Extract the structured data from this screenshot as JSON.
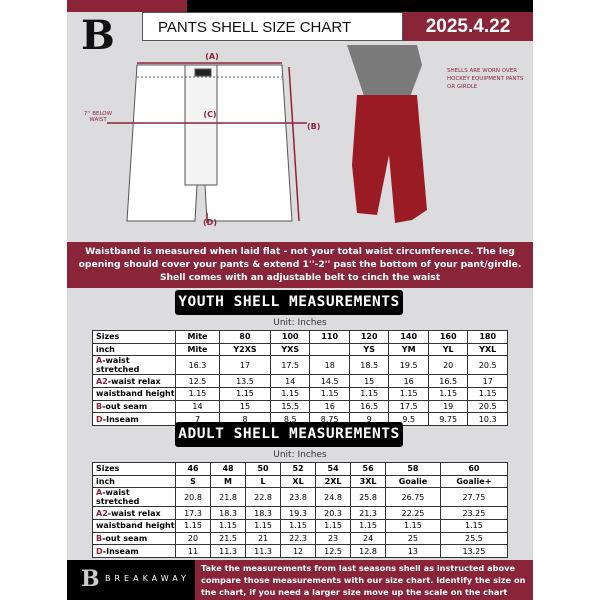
{
  "header": {
    "title": "PANTS SHELL SIZE CHART",
    "date": "2025.4.22",
    "logo": "B"
  },
  "diagram": {
    "label_a": "(A)",
    "label_b": "(B)",
    "label_c": "(C)",
    "label_d": "(D)",
    "below_waist": "7'' BELOW WAIST",
    "note": "SHELLS ARE WORN OVER HOCKEY EQUIPMENT PANTS OR GIRDLE"
  },
  "instructions": "Waistband is measured when laid flat - not your total waist circumference. The leg opening should cover your pants & extend 1''-2'' past the bottom of your pant/girdle. Shell comes with an adjustable belt to cinch the waist",
  "youth": {
    "title": "YOUTH SHELL MEASUREMENTS",
    "unit": "Unit: Inches",
    "rows": [
      {
        "prefix": "",
        "label": "Sizes",
        "values": [
          "Mite",
          "80",
          "100",
          "110",
          "120",
          "140",
          "160",
          "180"
        ]
      },
      {
        "prefix": "",
        "label": "inch",
        "values": [
          "Mite",
          "Y2XS",
          "YXS",
          "",
          "YS",
          "YM",
          "YL",
          "YXL"
        ]
      },
      {
        "prefix": "A",
        "label": "-waist stretched",
        "values": [
          "16.3",
          "17",
          "17.5",
          "18",
          "18.5",
          "19.5",
          "20",
          "20.5"
        ]
      },
      {
        "prefix": "A2",
        "label": "-waist relax",
        "values": [
          "12.5",
          "13.5",
          "14",
          "14.5",
          "15",
          "16",
          "16.5",
          "17"
        ]
      },
      {
        "prefix": "",
        "label": "waistband height",
        "values": [
          "1.15",
          "1.15",
          "1.15",
          "1.15",
          "1.15",
          "1.15",
          "1.15",
          "1.15"
        ]
      },
      {
        "prefix": "B",
        "label": "-out seam",
        "values": [
          "14",
          "15",
          "15.5",
          "16",
          "16.5",
          "17.5",
          "19",
          "20.5"
        ]
      },
      {
        "prefix": "D",
        "label": "-Inseam",
        "values": [
          "7",
          "8",
          "8.5",
          "8.75",
          "9",
          "9.5",
          "9.75",
          "10.3"
        ]
      }
    ]
  },
  "adult": {
    "title": "ADULT SHELL MEASUREMENTS",
    "unit": "Unit: Inches",
    "rows": [
      {
        "prefix": "",
        "label": "Sizes",
        "values": [
          "46",
          "48",
          "50",
          "52",
          "54",
          "56",
          "58",
          "60"
        ]
      },
      {
        "prefix": "",
        "label": "inch",
        "values": [
          "S",
          "M",
          "L",
          "XL",
          "2XL",
          "3XL",
          "Goalie",
          "Goalie+"
        ]
      },
      {
        "prefix": "A",
        "label": "-waist stretched",
        "values": [
          "20.8",
          "21.8",
          "22.8",
          "23.8",
          "24.8",
          "25.8",
          "26.75",
          "27.75"
        ]
      },
      {
        "prefix": "A2",
        "label": "-waist relax",
        "values": [
          "17.3",
          "18.3",
          "18.3",
          "19.3",
          "20.3",
          "21.3",
          "22.25",
          "23.25"
        ]
      },
      {
        "prefix": "",
        "label": "waistband height",
        "values": [
          "1.15",
          "1.15",
          "1.15",
          "1.15",
          "1.15",
          "1.15",
          "1.15",
          "1.15"
        ]
      },
      {
        "prefix": "B",
        "label": "-out seam",
        "values": [
          "20",
          "21.5",
          "21",
          "22.3",
          "23",
          "24",
          "25",
          "25.5"
        ]
      },
      {
        "prefix": "D",
        "label": "-Inseam",
        "values": [
          "11",
          "11.3",
          "11.3",
          "12",
          "12.5",
          "12.8",
          "13",
          "13.25"
        ]
      }
    ]
  },
  "footer": {
    "brand": "BREAKAWAY",
    "text": "Take the measurements from last seasons shell as instructed above compare those measurements  with our size chart. Identify the size on the chart, if you need a larger size move up the scale on the chart"
  },
  "colors": {
    "accent": "#8a2439",
    "dark": "#000000",
    "background": "#dcdcdf"
  }
}
